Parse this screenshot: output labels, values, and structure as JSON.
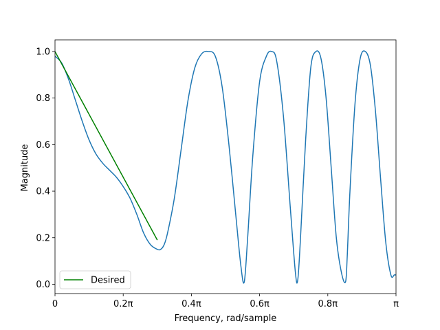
{
  "chart_data": {
    "type": "line",
    "title": "",
    "xlabel": "Frequency, rad/sample",
    "ylabel": "Magnitude",
    "xlim": [
      0,
      1
    ],
    "ylim": [
      -0.04,
      1.05
    ],
    "x_unit": "pi",
    "grid": false,
    "legend_placement": "lower-left",
    "xticks": [
      {
        "value": 0,
        "label": "0"
      },
      {
        "value": 0.2,
        "label": "0.2π"
      },
      {
        "value": 0.4,
        "label": "0.4π"
      },
      {
        "value": 0.6,
        "label": "0.6π"
      },
      {
        "value": 0.8,
        "label": "0.8π"
      },
      {
        "value": 1.0,
        "label": "π"
      }
    ],
    "yticks": [
      {
        "value": 0.0,
        "label": "0.0"
      },
      {
        "value": 0.2,
        "label": "0.2"
      },
      {
        "value": 0.4,
        "label": "0.4"
      },
      {
        "value": 0.6,
        "label": "0.6"
      },
      {
        "value": 0.8,
        "label": "0.8"
      },
      {
        "value": 1.0,
        "label": "1.0"
      }
    ],
    "series": [
      {
        "color": "#1f77b4",
        "x": [
          0,
          0.02,
          0.04,
          0.06,
          0.08,
          0.1,
          0.12,
          0.14,
          0.16,
          0.18,
          0.2,
          0.22,
          0.24,
          0.26,
          0.28,
          0.3,
          0.31,
          0.32,
          0.33,
          0.35,
          0.37,
          0.39,
          0.41,
          0.43,
          0.45,
          0.47,
          0.49,
          0.51,
          0.53,
          0.545,
          0.555,
          0.565,
          0.58,
          0.6,
          0.62,
          0.635,
          0.65,
          0.67,
          0.69,
          0.705,
          0.712,
          0.72,
          0.735,
          0.75,
          0.765,
          0.78,
          0.795,
          0.81,
          0.825,
          0.84,
          0.852,
          0.857,
          0.865,
          0.88,
          0.895,
          0.91,
          0.925,
          0.94,
          0.955,
          0.97,
          0.985,
          0.995,
          1.0
        ],
        "y": [
          0.98,
          0.95,
          0.88,
          0.79,
          0.7,
          0.62,
          0.56,
          0.52,
          0.49,
          0.46,
          0.42,
          0.37,
          0.3,
          0.22,
          0.17,
          0.15,
          0.15,
          0.17,
          0.22,
          0.37,
          0.58,
          0.79,
          0.93,
          0.99,
          1.0,
          0.98,
          0.85,
          0.6,
          0.3,
          0.08,
          0.01,
          0.2,
          0.55,
          0.87,
          0.98,
          1.0,
          0.96,
          0.72,
          0.33,
          0.05,
          0.02,
          0.2,
          0.62,
          0.93,
          1.0,
          0.97,
          0.8,
          0.5,
          0.2,
          0.05,
          0.01,
          0.12,
          0.4,
          0.78,
          0.97,
          1.0,
          0.94,
          0.74,
          0.45,
          0.18,
          0.04,
          0.04,
          0.04
        ]
      },
      {
        "name": "Desired",
        "color": "#008000",
        "x": [
          0,
          0.3
        ],
        "y": [
          1.0,
          0.19
        ]
      }
    ]
  }
}
